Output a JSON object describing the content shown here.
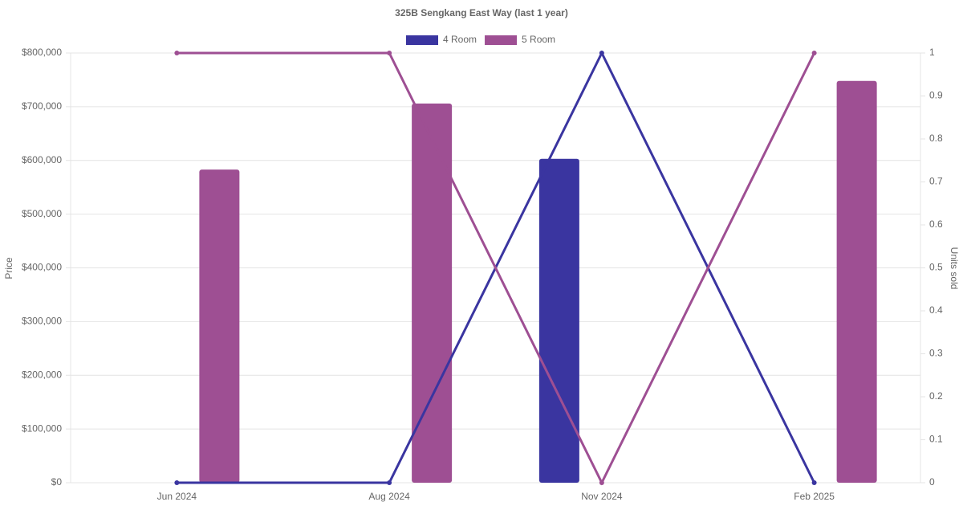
{
  "chart_data": {
    "type": "bar-line",
    "title": "325B Sengkang East Way (last 1 year)",
    "y_label": "Price",
    "y2_label": "Units sold",
    "categories": [
      "Jun 2024",
      "Aug 2024",
      "Nov 2024",
      "Feb 2025"
    ],
    "series": [
      {
        "name": "4 Room",
        "color": "#3a35a0",
        "values": [
          null,
          null,
          603000,
          null
        ],
        "units": [
          0,
          0,
          1,
          0
        ]
      },
      {
        "name": "5 Room",
        "color": "#9e4f93",
        "values": [
          583000,
          706000,
          null,
          748000
        ],
        "units": [
          1,
          1,
          0,
          1
        ]
      }
    ],
    "ylim": [
      0,
      800000
    ],
    "yticks": [
      {
        "value": 0,
        "label": "$0"
      },
      {
        "value": 100000,
        "label": "$100,000"
      },
      {
        "value": 200000,
        "label": "$200,000"
      },
      {
        "value": 300000,
        "label": "$300,000"
      },
      {
        "value": 400000,
        "label": "$400,000"
      },
      {
        "value": 500000,
        "label": "$500,000"
      },
      {
        "value": 600000,
        "label": "$600,000"
      },
      {
        "value": 700000,
        "label": "$700,000"
      },
      {
        "value": 800000,
        "label": "$800,000"
      }
    ],
    "y2lim": [
      0,
      1
    ],
    "y2ticks": [
      0,
      0.1,
      0.2,
      0.3,
      0.4,
      0.5,
      0.6,
      0.7,
      0.8,
      0.9,
      1
    ],
    "grid": true
  }
}
